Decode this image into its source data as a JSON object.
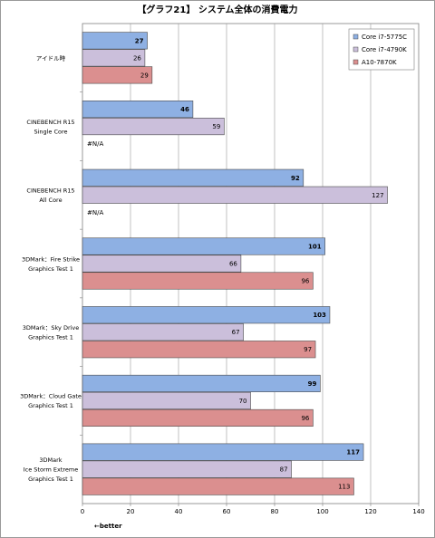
{
  "chart_data": {
    "type": "bar",
    "orientation": "horizontal",
    "title": "【グラフ21】 システム全体の消費電力",
    "categories": [
      [
        "アイドル時"
      ],
      [
        "CINEBENCH R15",
        "Single Core"
      ],
      [
        "CINEBENCH R15",
        "All Core"
      ],
      [
        "3DMark：Fire Strike",
        "Graphics Test 1"
      ],
      [
        "3DMark：Sky Drive",
        "Graphics Test 1"
      ],
      [
        "3DMark：Cloud Gate",
        "Graphics Test 1"
      ],
      [
        "3DMark",
        "Ice Storm Extreme",
        "Graphics Test 1"
      ]
    ],
    "series": [
      {
        "name": "Core i7-5775C",
        "color": "#8eb0e3",
        "values": [
          27,
          46,
          92,
          101,
          103,
          99,
          117
        ]
      },
      {
        "name": "Core i7-4790K",
        "color": "#cbbfdb",
        "values": [
          26,
          59,
          127,
          66,
          67,
          70,
          87
        ]
      },
      {
        "name": "A10-7870K",
        "color": "#db8f8f",
        "values": [
          29,
          null,
          null,
          96,
          97,
          96,
          113
        ]
      }
    ],
    "missing_label": "#N/A",
    "xlim": [
      0,
      140
    ],
    "xticks": [
      0,
      20,
      40,
      60,
      80,
      100,
      120,
      140
    ],
    "grid": true,
    "legend_position": "top-right",
    "note": "←better"
  }
}
